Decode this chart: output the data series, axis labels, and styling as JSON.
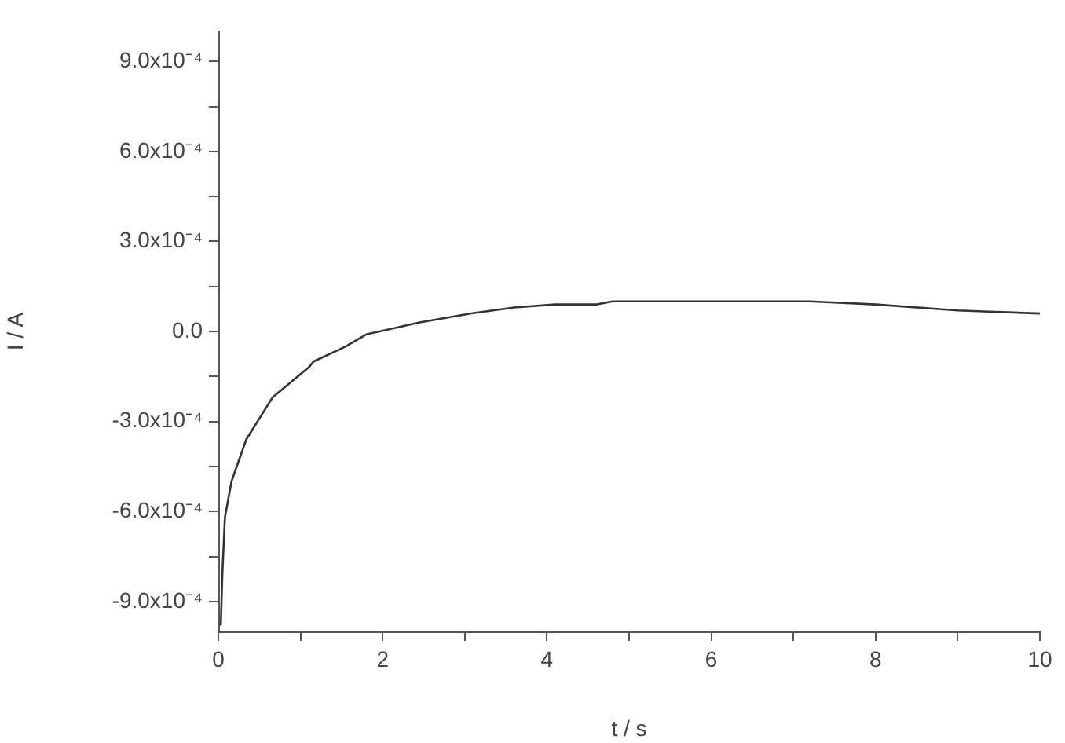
{
  "chart_data": {
    "type": "line",
    "xlabel": "t / s",
    "ylabel": "I / A",
    "color": "#333333",
    "marker": "none",
    "line_style": "solid",
    "grid": false,
    "legend": false,
    "x": [
      0.03,
      0.05,
      0.08,
      0.16,
      0.34,
      0.66,
      1.1,
      1.16,
      1.55,
      1.8,
      2.45,
      3.08,
      3.6,
      4.1,
      4.6,
      4.8,
      7.2,
      8.0,
      9.0,
      10.0
    ],
    "values": [
      -0.00098,
      -0.0008,
      -0.00062,
      -0.0005,
      -0.00036,
      -0.00022,
      -0.00012,
      -0.0001,
      -5e-05,
      -1e-05,
      3e-05,
      6e-05,
      8e-05,
      9e-05,
      9e-05,
      0.0001,
      0.0001,
      9e-05,
      7e-05,
      6e-05
    ],
    "xlim": [
      0,
      10
    ],
    "xticks": [
      0,
      {
        "value": 1,
        "label": null
      },
      2,
      {
        "value": 3,
        "label": null
      },
      4,
      {
        "value": 5,
        "label": null
      },
      6,
      {
        "value": 7,
        "label": null
      },
      8,
      {
        "value": 9,
        "label": null
      },
      10
    ],
    "ylim": [
      -0.001,
      0.001
    ],
    "yticks": [
      {
        "value": -0.0009,
        "label": "-9.0x10⁻⁴"
      },
      {
        "value": -0.00075,
        "label": null
      },
      {
        "value": -0.0006,
        "label": "-6.0x10⁻⁴"
      },
      {
        "value": -0.00045,
        "label": null
      },
      {
        "value": -0.0003,
        "label": "-3.0x10⁻⁴"
      },
      {
        "value": -0.00015,
        "label": null
      },
      {
        "value": 0,
        "label": "0.0"
      },
      {
        "value": 0.00015,
        "label": null
      },
      {
        "value": 0.0003,
        "label": "3.0x10⁻⁴"
      },
      {
        "value": 0.00045,
        "label": null
      },
      {
        "value": 0.0006,
        "label": "6.0x10⁻⁴"
      },
      {
        "value": 0.00075,
        "label": null
      },
      {
        "value": 0.0009,
        "label": "9.0x10⁻⁴"
      }
    ]
  }
}
